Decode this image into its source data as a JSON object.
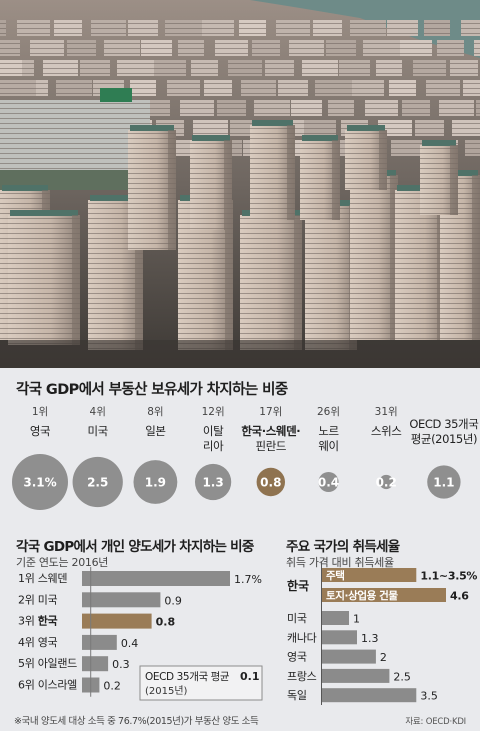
{
  "chart_data": [
    {
      "type": "bubble",
      "title": "각국 GDP에서 부동산 보유세가 차지하는 비중",
      "unit": "%",
      "items": [
        {
          "rank": "1위",
          "label": [
            "영국"
          ],
          "value": 3.1,
          "display": "3.1%",
          "highlight": false
        },
        {
          "rank": "4위",
          "label": [
            "미국"
          ],
          "value": 2.5,
          "display": "2.5",
          "highlight": false
        },
        {
          "rank": "8위",
          "label": [
            "일본"
          ],
          "value": 1.9,
          "display": "1.9",
          "highlight": false
        },
        {
          "rank": "12위",
          "label": [
            "이탈",
            "리아"
          ],
          "value": 1.3,
          "display": "1.3",
          "highlight": false
        },
        {
          "rank": "17위",
          "label": [
            "한국·스웨덴·",
            "핀란드"
          ],
          "value": 0.8,
          "display": "0.8",
          "highlight": true
        },
        {
          "rank": "26위",
          "label": [
            "노르",
            "웨이"
          ],
          "value": 0.4,
          "display": "0.4",
          "highlight": false
        },
        {
          "rank": "31위",
          "label": [
            "스위스"
          ],
          "value": 0.2,
          "display": "0.2",
          "highlight": false
        },
        {
          "rank": "",
          "label": [
            "OECD 35개국",
            "평균(2015년)"
          ],
          "value": 1.1,
          "display": "1.1",
          "highlight": false
        }
      ]
    },
    {
      "type": "bar",
      "title": "각국 GDP에서 개인 양도세가 차지하는 비중",
      "subtitle": "기준 연도는 2016년",
      "categories": [
        "1위 스웨덴",
        "2위 미국",
        "3위 한국",
        "4위 영국",
        "5위 아일랜드",
        "6위 이스라엘"
      ],
      "values": [
        1.7,
        0.9,
        0.8,
        0.4,
        0.3,
        0.2
      ],
      "value_labels": [
        "1.7%",
        "0.9",
        "0.8",
        "0.4",
        "0.3",
        "0.2"
      ],
      "highlight_index": 2,
      "reference": {
        "label": "OECD 35개국 평균",
        "period": "(2015년)",
        "value": 0.1,
        "display": "0.1"
      }
    },
    {
      "type": "bar",
      "title": "주요 국가의 취득세율",
      "subtitle": "취득 가격 대비 취득세율",
      "group_label": "한국",
      "korea_bars": [
        {
          "label": "주택",
          "value": 3.5,
          "display": "1.1~3.5%"
        },
        {
          "label": "토지·상업용 건물",
          "value": 4.6,
          "display": "4.6"
        }
      ],
      "categories": [
        "미국",
        "캐나다",
        "영국",
        "프랑스",
        "독일"
      ],
      "values": [
        1,
        1.3,
        2,
        2.5,
        3.5
      ],
      "value_labels": [
        "1",
        "1.3",
        "2",
        "2.5",
        "3.5"
      ]
    }
  ],
  "footnote": "※국내 양도세 대상 소득 중 76.7%(2015년)가 부동산 양도 소득",
  "source": "자료: OECD·KDI",
  "colors": {
    "bar_gray": "#8b8b8b",
    "bar_highlight": "#9a7c57",
    "bubble_gray": "#8f8f8f",
    "bubble_highlight": "#8f7350",
    "panel": "#e9eaed",
    "reference_line": "#7a7a7a"
  }
}
